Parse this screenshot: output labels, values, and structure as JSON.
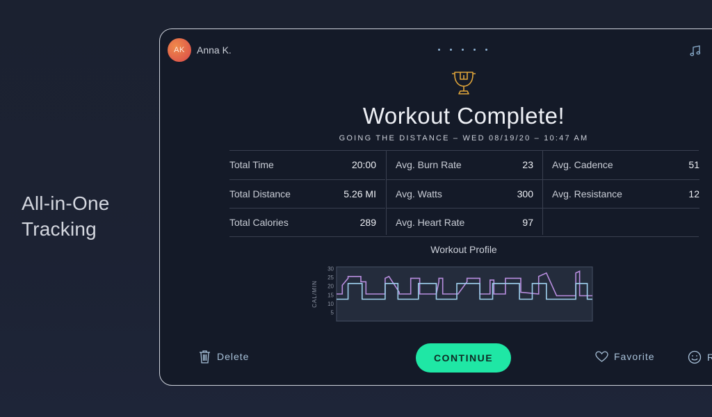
{
  "promo": {
    "line1": "All-in-One",
    "line2": "Tracking"
  },
  "header": {
    "avatar_initials": "AK",
    "username": "Anna K.",
    "page_dots": 5,
    "music_icon": "music-note-icon"
  },
  "summary": {
    "trophy_icon": "trophy-icon",
    "title": "Workout Complete!",
    "subtitle": "GOING THE DISTANCE – WED 08/19/20 – 10:47 AM"
  },
  "stats": {
    "col0": [
      {
        "label": "Total Time",
        "value": "20:00"
      },
      {
        "label": "Total Distance",
        "value": "5.26 MI"
      },
      {
        "label": "Total Calories",
        "value": "289"
      }
    ],
    "col1": [
      {
        "label": "Avg. Burn Rate",
        "value": "23"
      },
      {
        "label": "Avg. Watts",
        "value": "300"
      },
      {
        "label": "Avg. Heart Rate",
        "value": "97"
      }
    ],
    "col2": [
      {
        "label": "Avg. Cadence",
        "value": "51"
      },
      {
        "label": "Avg. Resistance",
        "value": "12"
      }
    ]
  },
  "profile": {
    "title": "Workout Profile"
  },
  "chart_data": {
    "type": "line",
    "ylabel": "CAL/MIN",
    "ylim": [
      0,
      31
    ],
    "yticks": [
      5,
      10,
      15,
      20,
      25,
      30
    ],
    "xlim": [
      0,
      20
    ],
    "series": [
      {
        "color": "#b98ee0",
        "x": [
          0,
          0.45,
          0.45,
          0.9,
          0.9,
          1.9,
          1.9,
          2.3,
          2.3,
          3.8,
          3.8,
          4.1,
          4.1,
          4.9,
          4.9,
          5.8,
          5.8,
          6.5,
          6.5,
          7.8,
          7.8,
          8.0,
          8.0,
          8.3,
          8.3,
          9.5,
          9.5,
          10.2,
          10.2,
          11.2,
          11.2,
          12.0,
          12.0,
          12.3,
          12.3,
          13.2,
          13.2,
          14.4,
          14.4,
          15.8,
          15.8,
          16.4,
          16.4,
          17.2,
          17.2,
          18.7,
          18.7,
          19.0,
          19.0,
          20
        ],
        "y": [
          15.5,
          15.5,
          20.5,
          24.5,
          25.5,
          25.5,
          22.5,
          22.5,
          15.5,
          15.5,
          24.5,
          25.5,
          25.5,
          16.5,
          15.5,
          15.5,
          24.5,
          24.5,
          15.5,
          15.5,
          15.5,
          22.5,
          24.5,
          24.5,
          15.5,
          15.5,
          15.5,
          22.5,
          24.5,
          24.5,
          15.5,
          15.5,
          23.5,
          23.5,
          15.5,
          15.5,
          24.5,
          24.5,
          16.5,
          15.5,
          25.5,
          27.5,
          27.5,
          14.5,
          14.5,
          14.5,
          27.5,
          28.5,
          14.5,
          14.5
        ]
      },
      {
        "color": "#9fd0ee",
        "x": [
          0,
          0.9,
          0.9,
          2.0,
          2.0,
          3.8,
          3.8,
          4.8,
          4.8,
          6.4,
          6.4,
          7.8,
          7.8,
          9.4,
          9.4,
          11.2,
          11.2,
          12.2,
          12.2,
          14.3,
          14.3,
          15.3,
          15.3,
          16.4,
          16.4,
          18.7,
          18.7,
          19.6,
          19.6,
          20
        ],
        "y": [
          12.5,
          12.5,
          21.5,
          21.5,
          12.5,
          12.5,
          21.5,
          21.5,
          12.5,
          12.5,
          21.5,
          21.5,
          12.5,
          12.5,
          21.5,
          21.5,
          12.5,
          12.5,
          21.5,
          21.5,
          12.5,
          12.5,
          21.5,
          21.5,
          12.5,
          12.5,
          21.5,
          21.5,
          12.5,
          12.5
        ]
      }
    ]
  },
  "actions": {
    "delete_label": "Delete",
    "continue_label": "CONTINUE",
    "favorite_label": "Favorite",
    "rate_label": "R"
  },
  "colors": {
    "accent": "#1fe7a5",
    "trophy": "#e0a53a",
    "link": "#a9c2da"
  }
}
